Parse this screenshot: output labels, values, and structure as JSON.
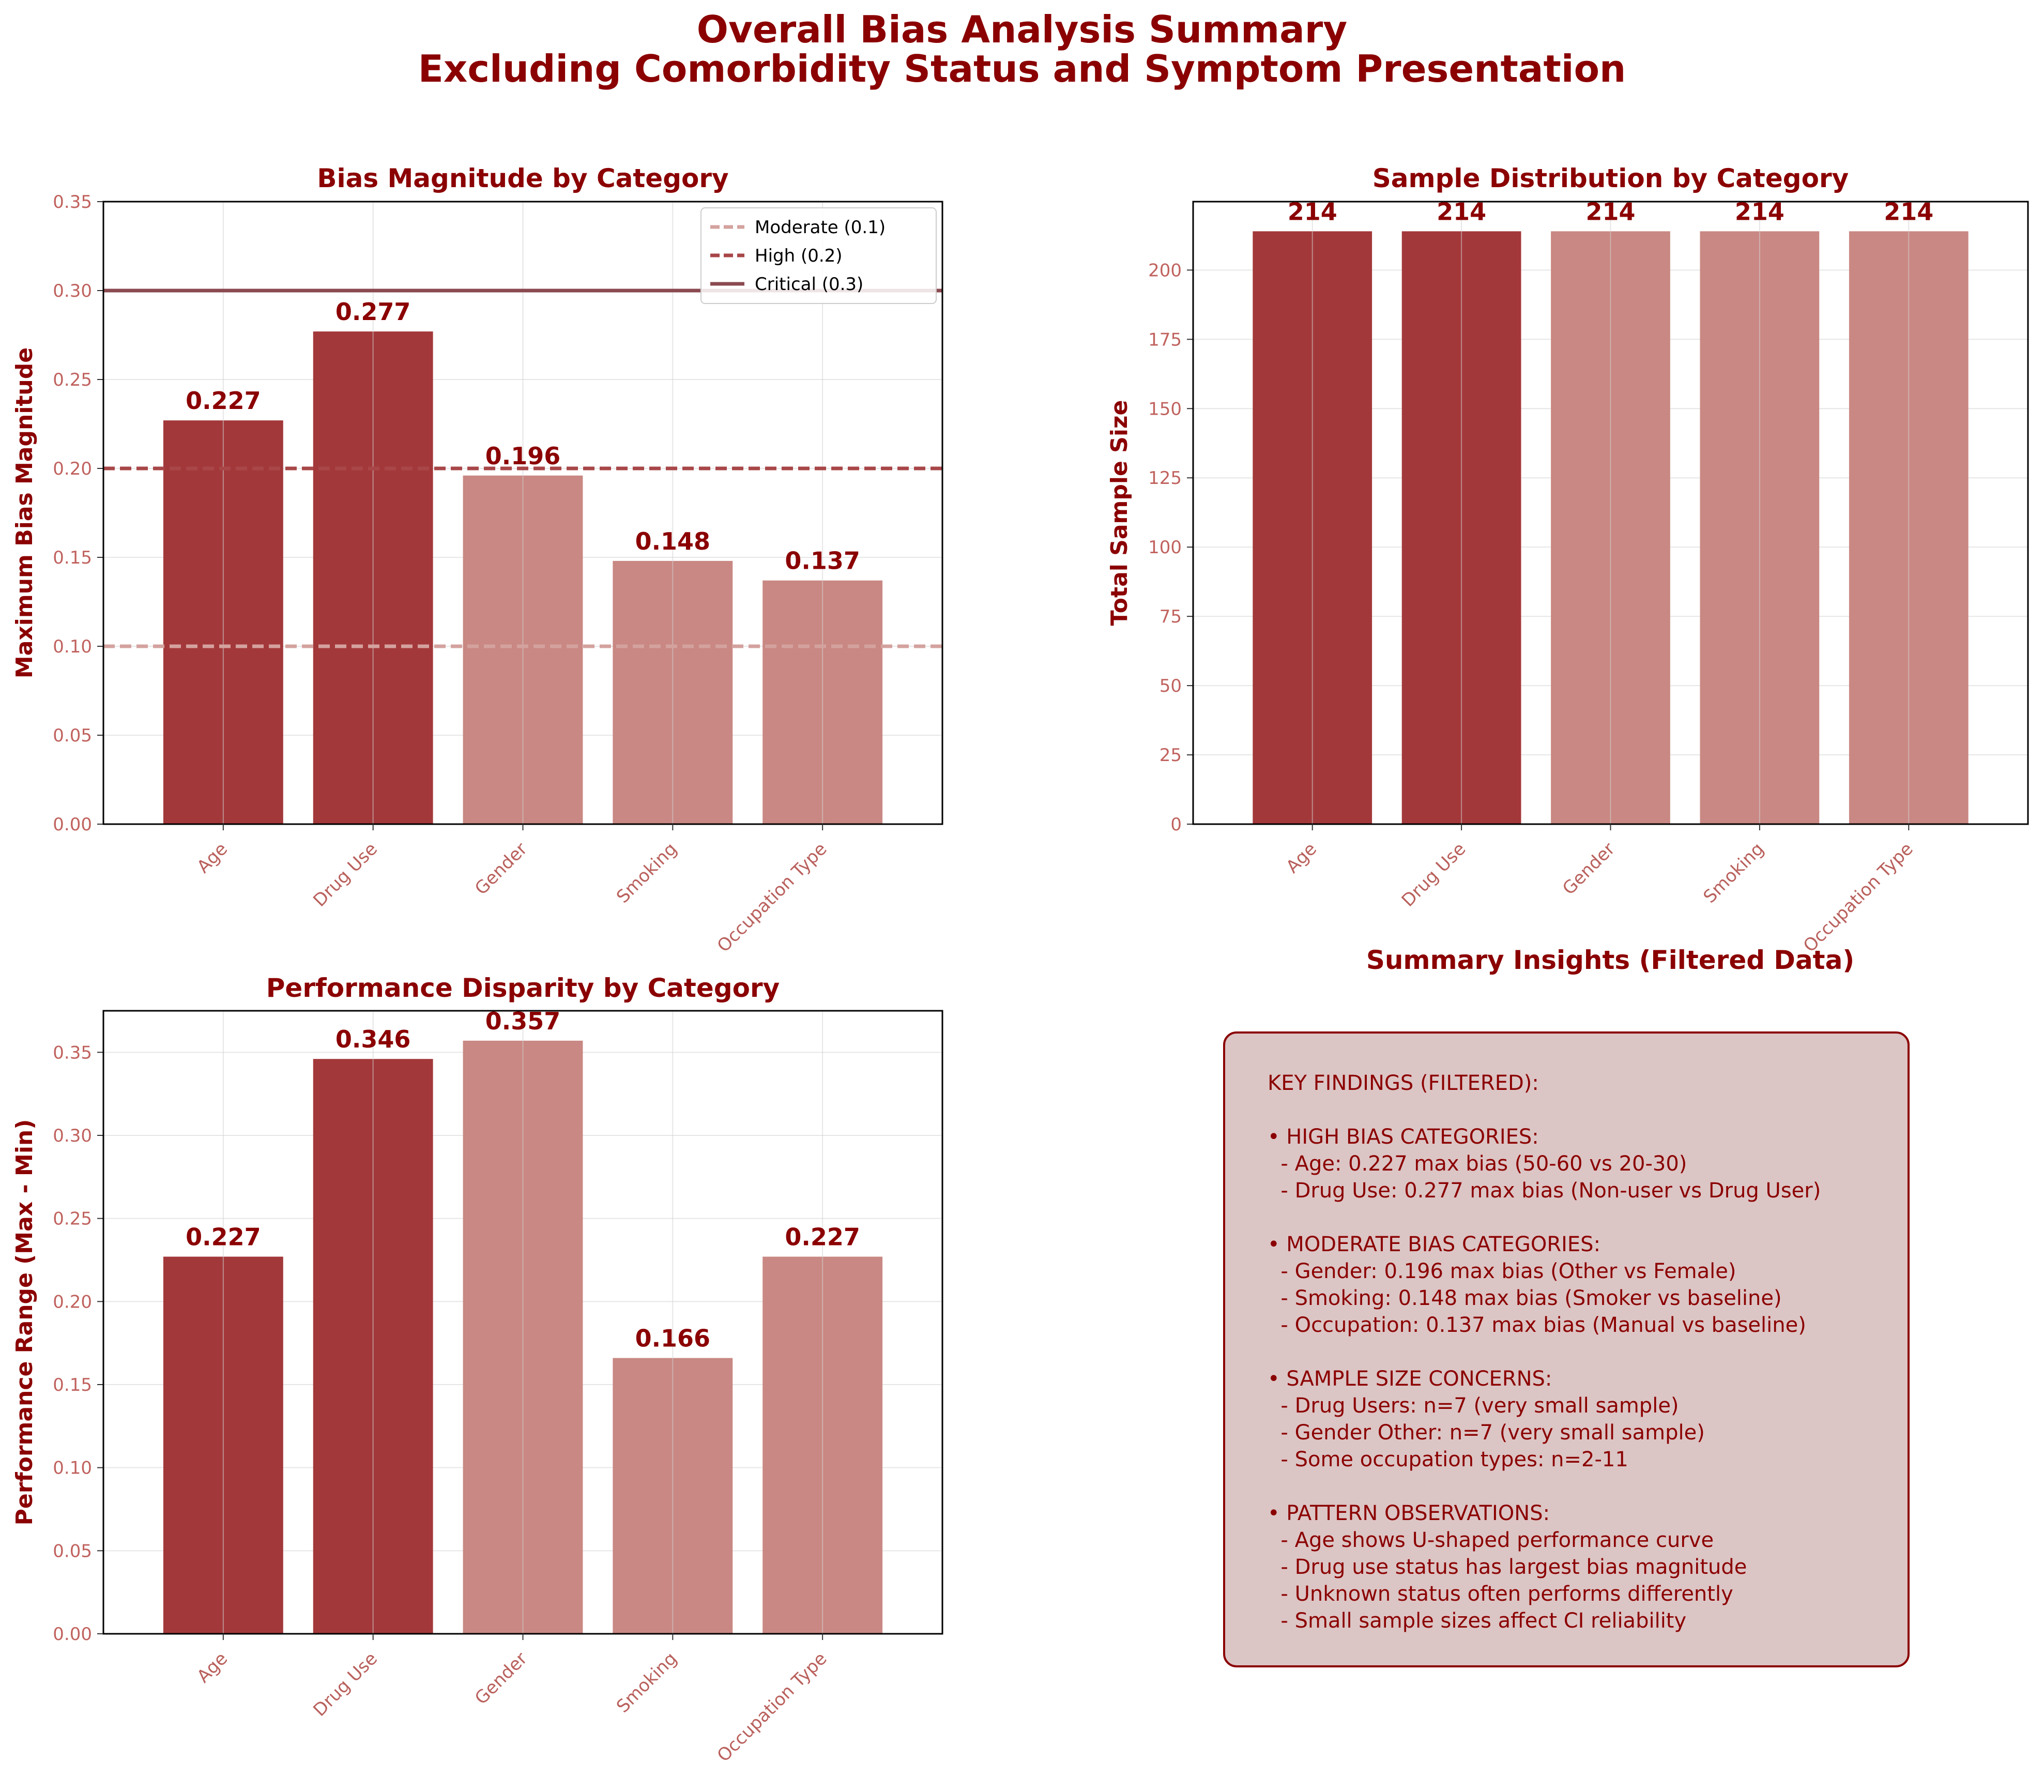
{
  "suptitle": {
    "line1": "Overall Bias Analysis Summary",
    "line2": "Excluding Comorbidity Status and Symptom Presentation"
  },
  "colors": {
    "title": "#8b0000",
    "bar_high": "#a3383a",
    "bar_moderate": "#c98883",
    "tick": "#c0625e",
    "moderate_line": "#d4a29e",
    "high_line": "#a84648",
    "critical_line": "#8b4a50",
    "insights_bg": "#dcc5c5"
  },
  "chart_data": [
    {
      "id": "bias",
      "type": "bar",
      "title": "Bias Magnitude by Category",
      "xlabel": "",
      "ylabel": "Maximum Bias Magnitude",
      "categories": [
        "Age",
        "Drug Use",
        "Gender",
        "Smoking",
        "Occupation Type"
      ],
      "values": [
        0.227,
        0.277,
        0.196,
        0.148,
        0.137
      ],
      "value_labels": [
        "0.227",
        "0.277",
        "0.196",
        "0.148",
        "0.137"
      ],
      "severity": [
        "high",
        "high",
        "moderate",
        "moderate",
        "moderate"
      ],
      "ylim": [
        0,
        0.35
      ],
      "yticks": [
        "0.00",
        "0.05",
        "0.10",
        "0.15",
        "0.20",
        "0.25",
        "0.30",
        "0.35"
      ],
      "grid": true,
      "legend_placement": "top-right",
      "thresholds": [
        {
          "label": "Moderate (0.1)",
          "value": 0.1,
          "style": "dashed"
        },
        {
          "label": "High (0.2)",
          "value": 0.2,
          "style": "dashed"
        },
        {
          "label": "Critical (0.3)",
          "value": 0.3,
          "style": "solid"
        }
      ]
    },
    {
      "id": "sample",
      "type": "bar",
      "title": "Sample Distribution by Category",
      "xlabel": "",
      "ylabel": "Total Sample Size",
      "categories": [
        "Age",
        "Drug Use",
        "Gender",
        "Smoking",
        "Occupation Type"
      ],
      "values": [
        214,
        214,
        214,
        214,
        214
      ],
      "value_labels": [
        "214",
        "214",
        "214",
        "214",
        "214"
      ],
      "severity": [
        "high",
        "high",
        "moderate",
        "moderate",
        "moderate"
      ],
      "ylim": [
        0,
        224.7
      ],
      "yticks": [
        "0",
        "25",
        "50",
        "75",
        "100",
        "125",
        "150",
        "175",
        "200"
      ],
      "grid": true
    },
    {
      "id": "perf",
      "type": "bar",
      "title": "Performance Disparity by Category",
      "xlabel": "",
      "ylabel": "Performance Range (Max - Min)",
      "categories": [
        "Age",
        "Drug Use",
        "Gender",
        "Smoking",
        "Occupation Type"
      ],
      "values": [
        0.227,
        0.346,
        0.357,
        0.166,
        0.227
      ],
      "value_labels": [
        "0.227",
        "0.346",
        "0.357",
        "0.166",
        "0.227"
      ],
      "severity": [
        "high",
        "high",
        "moderate",
        "moderate",
        "moderate"
      ],
      "ylim": [
        0,
        0.375
      ],
      "yticks": [
        "0.00",
        "0.05",
        "0.10",
        "0.15",
        "0.20",
        "0.25",
        "0.30",
        "0.35"
      ],
      "grid": true
    }
  ],
  "insights": {
    "title": "Summary Insights (Filtered Data)",
    "lines": [
      "KEY FINDINGS (FILTERED):",
      "",
      "• HIGH BIAS CATEGORIES:",
      "  - Age: 0.227 max bias (50-60 vs 20-30)",
      "  - Drug Use: 0.277 max bias (Non-user vs Drug User)",
      "",
      "• MODERATE BIAS CATEGORIES:",
      "  - Gender: 0.196 max bias (Other vs Female)",
      "  - Smoking: 0.148 max bias (Smoker vs baseline)",
      "  - Occupation: 0.137 max bias (Manual vs baseline)",
      "",
      "• SAMPLE SIZE CONCERNS:",
      "  - Drug Users: n=7 (very small sample)",
      "  - Gender Other: n=7 (very small sample)",
      "  - Some occupation types: n=2-11",
      "",
      "• PATTERN OBSERVATIONS:",
      "  - Age shows U-shaped performance curve",
      "  - Drug use status has largest bias magnitude",
      "  - Unknown status often performs differently",
      "  - Small sample sizes affect CI reliability"
    ]
  }
}
